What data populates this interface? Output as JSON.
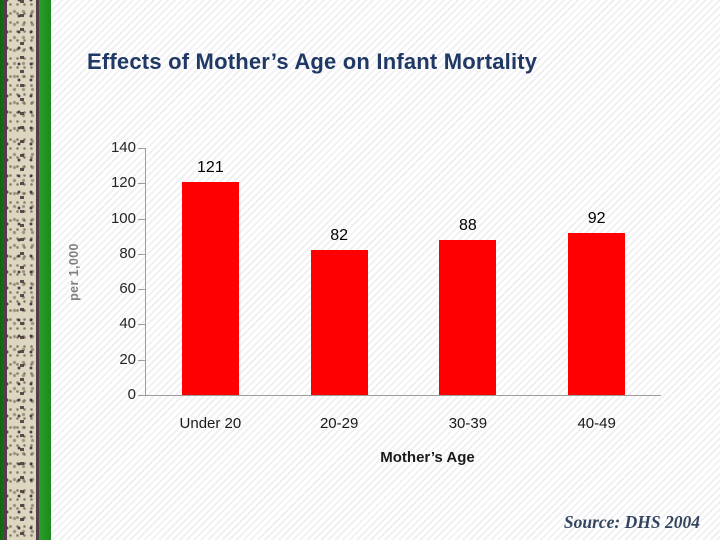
{
  "slide": {
    "title": "Effects of Mother’s Age on Infant Mortality",
    "source": "Source: DHS 2004"
  },
  "chart_data": {
    "type": "bar",
    "title": "Effects of Mother’s Age on Infant Mortality",
    "categories": [
      "Under 20",
      "20-29",
      "30-39",
      "40-49"
    ],
    "values": [
      121,
      82,
      88,
      92
    ],
    "data_labels": [
      121,
      82,
      88,
      92
    ],
    "xlabel": "Mother’s Age",
    "ylabel": "per 1,000",
    "ylim": [
      0,
      140
    ],
    "yticks": [
      140,
      120,
      100,
      80,
      60,
      40,
      20,
      0
    ],
    "grid": false,
    "legend_position": "none",
    "bar_color": "#ff0000"
  },
  "colors": {
    "title_text": "#1f3864",
    "bar": "#ff0000",
    "axis_line": "#9d9d9d",
    "tick_text": "#262626",
    "y_axis_title_text": "#808080",
    "source_text": "#33455e",
    "border_green": "#1d8a1d",
    "border_maroon": "#553c4a",
    "border_beige": "#ddd7c2"
  }
}
